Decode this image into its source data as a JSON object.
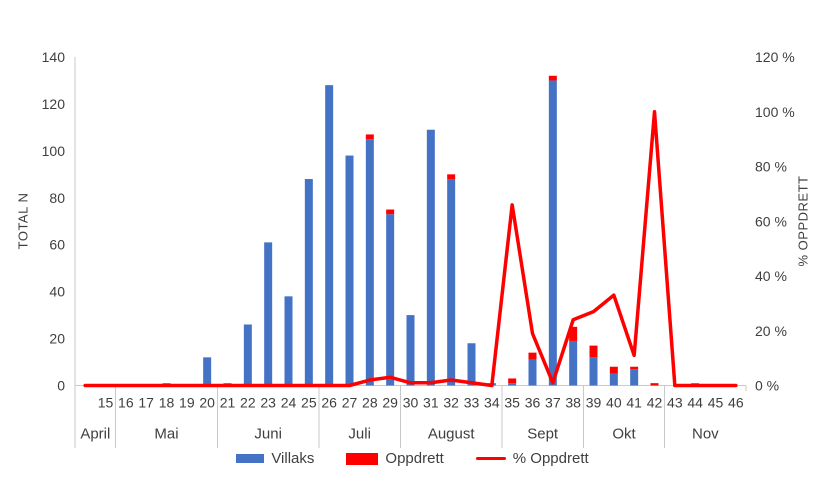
{
  "chart_data": {
    "type": "bar",
    "subtype": "combo-stacked-bars-with-line",
    "title": "",
    "left_axis": {
      "title": "TOTAL N",
      "min": 0,
      "max": 140,
      "step": 20,
      "tick_labels": [
        "0",
        "20",
        "40",
        "60",
        "80",
        "100",
        "120",
        "140"
      ]
    },
    "right_axis": {
      "title": "% OPPDRETT",
      "min": 0,
      "max": 120,
      "step": 20,
      "tick_labels": [
        "0 %",
        "20 %",
        "40 %",
        "60 %",
        "80 %",
        "100 %",
        "120 %"
      ]
    },
    "grid": "off",
    "legend_position": "bottom",
    "axis_color": "#c9c9c9",
    "text_color": "#3f3f3f",
    "groups": [
      {
        "label": "April",
        "weeks": [
          "15"
        ],
        "lead_slots": 1
      },
      {
        "label": "Mai",
        "weeks": [
          "16",
          "17",
          "18",
          "19",
          "20"
        ]
      },
      {
        "label": "Juni",
        "weeks": [
          "21",
          "22",
          "23",
          "24",
          "25"
        ]
      },
      {
        "label": "Juli",
        "weeks": [
          "26",
          "27",
          "28",
          "29"
        ]
      },
      {
        "label": "August",
        "weeks": [
          "30",
          "31",
          "32",
          "33",
          "34"
        ]
      },
      {
        "label": "Sept",
        "weeks": [
          "35",
          "36",
          "37",
          "38"
        ]
      },
      {
        "label": "Okt",
        "weeks": [
          "39",
          "40",
          "41",
          "42"
        ]
      },
      {
        "label": "Nov",
        "weeks": [
          "43",
          "44",
          "45",
          "46"
        ]
      }
    ],
    "series": [
      {
        "name": "Villaks",
        "type": "bar",
        "axis": "left",
        "color": "#4472c4",
        "values": [
          0,
          0,
          0,
          1,
          0,
          12,
          1,
          26,
          61,
          38,
          88,
          128,
          98,
          105,
          73,
          30,
          109,
          88,
          18,
          1,
          1,
          11,
          130,
          19,
          12,
          5,
          7,
          0,
          0,
          1,
          0,
          0
        ]
      },
      {
        "name": "Oppdrett",
        "type": "bar",
        "axis": "left",
        "color": "#ff0000",
        "stacked_on": "Villaks",
        "values": [
          0,
          0,
          0,
          0,
          0,
          0,
          0,
          0,
          0,
          0,
          0,
          0,
          0,
          2,
          2,
          0,
          0,
          2,
          0,
          0,
          2,
          3,
          2,
          6,
          5,
          3,
          1,
          1,
          0,
          0,
          0,
          0
        ]
      },
      {
        "name": "% Oppdrett",
        "type": "line",
        "axis": "right",
        "color": "#ff0000",
        "values": [
          0,
          0,
          0,
          0,
          0,
          0,
          0,
          0,
          0,
          0,
          0,
          0,
          0,
          2,
          3,
          1,
          1,
          2,
          1,
          0,
          66,
          19,
          1,
          24,
          27,
          33,
          11,
          100,
          0,
          0,
          0,
          0
        ]
      }
    ]
  }
}
